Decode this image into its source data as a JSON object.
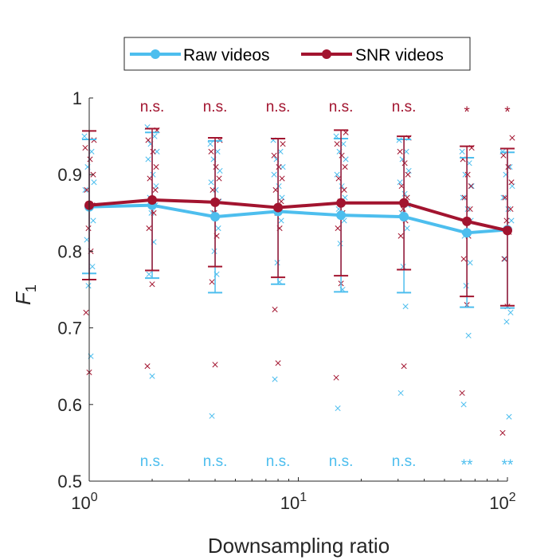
{
  "chart_data": {
    "type": "line",
    "xscale": "log",
    "xlim": [
      1,
      100
    ],
    "ylim": [
      0.5,
      1
    ],
    "xlabel": "Downsampling ratio",
    "ylabel": "F",
    "ylabel_subscript": "1",
    "x_tick_labels": [
      {
        "base": "10",
        "exp": "0",
        "value": 1
      },
      {
        "base": "10",
        "exp": "1",
        "value": 10
      },
      {
        "base": "10",
        "exp": "2",
        "value": 100
      }
    ],
    "y_ticks": [
      0.5,
      0.6,
      0.7,
      0.8,
      0.9,
      1
    ],
    "y_tick_labels": [
      "0.5",
      "0.6",
      "0.7",
      "0.8",
      "0.9",
      "1"
    ],
    "legend": {
      "placement": "top",
      "orientation": "horizontal"
    },
    "x": [
      1,
      2,
      4,
      8,
      16,
      32,
      64,
      100
    ],
    "series": [
      {
        "name": "Raw videos",
        "color": "#4DBEEE",
        "values": [
          0.858,
          0.86,
          0.845,
          0.852,
          0.847,
          0.845,
          0.824,
          0.828
        ],
        "err_low": [
          0.771,
          0.765,
          0.746,
          0.757,
          0.747,
          0.746,
          0.727,
          0.726
        ],
        "err_high": [
          0.946,
          0.955,
          0.944,
          0.947,
          0.947,
          0.946,
          0.922,
          0.929
        ],
        "points": [
          [
            0.95,
            0.93,
            0.91,
            0.89,
            0.88,
            0.86,
            0.84,
            0.815,
            0.78,
            0.755,
            0.663
          ],
          [
            0.962,
            0.95,
            0.94,
            0.93,
            0.92,
            0.9,
            0.885,
            0.87,
            0.86,
            0.85,
            0.812,
            0.77,
            0.637
          ],
          [
            0.94,
            0.93,
            0.92,
            0.905,
            0.89,
            0.88,
            0.865,
            0.85,
            0.83,
            0.8,
            0.77,
            0.585
          ],
          [
            0.945,
            0.93,
            0.92,
            0.91,
            0.9,
            0.885,
            0.87,
            0.855,
            0.84,
            0.785,
            0.76,
            0.633
          ],
          [
            0.95,
            0.94,
            0.93,
            0.92,
            0.9,
            0.885,
            0.87,
            0.855,
            0.84,
            0.81,
            0.75,
            0.595
          ],
          [
            0.945,
            0.93,
            0.92,
            0.905,
            0.89,
            0.875,
            0.86,
            0.85,
            0.83,
            0.78,
            0.728,
            0.615
          ],
          [
            0.93,
            0.915,
            0.9,
            0.885,
            0.87,
            0.855,
            0.84,
            0.82,
            0.785,
            0.755,
            0.69,
            0.6
          ],
          [
            0.93,
            0.91,
            0.9,
            0.885,
            0.87,
            0.855,
            0.84,
            0.79,
            0.72,
            0.708,
            0.584
          ]
        ]
      },
      {
        "name": "SNR videos",
        "color": "#A2142F",
        "values": [
          0.86,
          0.867,
          0.864,
          0.857,
          0.863,
          0.863,
          0.839,
          0.827
        ],
        "err_low": [
          0.763,
          0.775,
          0.78,
          0.766,
          0.768,
          0.776,
          0.741,
          0.729
        ],
        "err_high": [
          0.957,
          0.96,
          0.948,
          0.947,
          0.958,
          0.95,
          0.937,
          0.934
        ],
        "points": [
          [
            0.945,
            0.935,
            0.92,
            0.9,
            0.88,
            0.86,
            0.83,
            0.8,
            0.72,
            0.642
          ],
          [
            0.958,
            0.945,
            0.93,
            0.91,
            0.895,
            0.88,
            0.865,
            0.85,
            0.83,
            0.757,
            0.65
          ],
          [
            0.945,
            0.93,
            0.91,
            0.895,
            0.88,
            0.865,
            0.85,
            0.82,
            0.76,
            0.652
          ],
          [
            0.94,
            0.925,
            0.91,
            0.895,
            0.88,
            0.865,
            0.85,
            0.83,
            0.724,
            0.654
          ],
          [
            0.955,
            0.94,
            0.925,
            0.91,
            0.895,
            0.88,
            0.865,
            0.85,
            0.83,
            0.758,
            0.635
          ],
          [
            0.948,
            0.93,
            0.915,
            0.9,
            0.885,
            0.87,
            0.855,
            0.84,
            0.82,
            0.65
          ],
          [
            0.935,
            0.92,
            0.9,
            0.885,
            0.87,
            0.855,
            0.84,
            0.82,
            0.79,
            0.73,
            0.615
          ],
          [
            0.948,
            0.925,
            0.91,
            0.89,
            0.87,
            0.855,
            0.84,
            0.825,
            0.79,
            0.728,
            0.563
          ]
        ]
      }
    ],
    "annotations_top": {
      "color": "#A2142F",
      "labels": [
        "n.s.",
        "n.s.",
        "n.s.",
        "n.s.",
        "n.s.",
        "*",
        "*"
      ],
      "x": [
        2,
        4,
        8,
        16,
        32,
        64,
        100
      ]
    },
    "annotations_bottom": {
      "color": "#4DBEEE",
      "labels": [
        "n.s.",
        "n.s.",
        "n.s.",
        "n.s.",
        "n.s.",
        "**",
        "**"
      ],
      "x": [
        2,
        4,
        8,
        16,
        32,
        64,
        100
      ]
    }
  }
}
